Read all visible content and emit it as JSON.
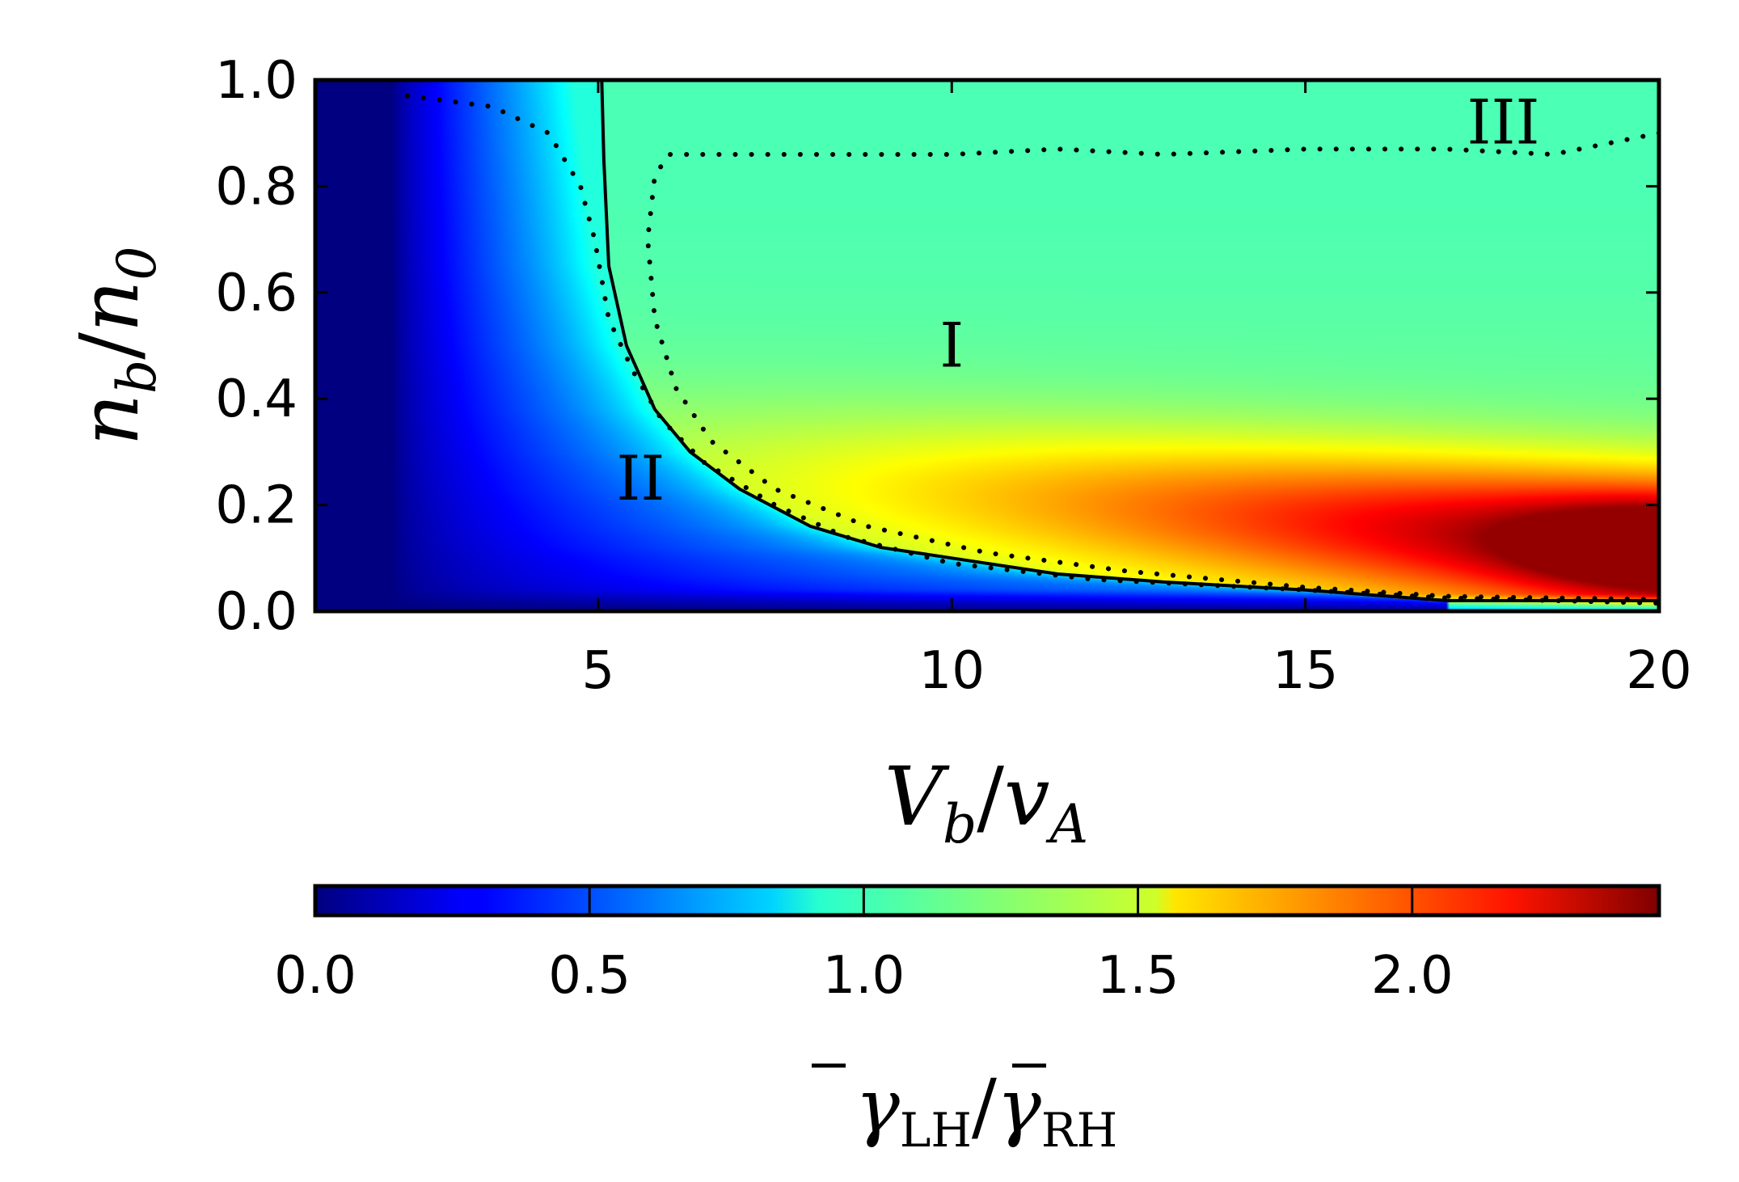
{
  "chart_data": {
    "type": "heatmap",
    "title": "",
    "xlabel_parts": {
      "main": "V",
      "main_sub": "b",
      "sep": "/",
      "den": "v",
      "den_sub": "A"
    },
    "ylabel_parts": {
      "main": "n",
      "main_sub": "b",
      "sep": "/",
      "den": "n",
      "den_sub": "0"
    },
    "colorbar_label_parts": {
      "num": "γ",
      "num_sub": "LH",
      "sep": "/",
      "den": "γ",
      "den_sub": "RH"
    },
    "xlim": [
      1,
      20
    ],
    "ylim": [
      0.0,
      1.0
    ],
    "clim": [
      0.0,
      2.45
    ],
    "colormap": "jet",
    "x_ticks": [
      5,
      10,
      15,
      20
    ],
    "x_tick_labels": [
      "5",
      "10",
      "15",
      "20"
    ],
    "y_ticks": [
      0.0,
      0.2,
      0.4,
      0.6,
      0.8,
      1.0
    ],
    "y_tick_labels": [
      "0.0",
      "0.2",
      "0.4",
      "0.6",
      "0.8",
      "1.0"
    ],
    "colorbar_ticks": [
      0.0,
      0.5,
      1.0,
      1.5,
      2.0
    ],
    "colorbar_tick_labels": [
      "0.0",
      "0.5",
      "1.0",
      "1.5",
      "2.0"
    ],
    "region_labels": [
      {
        "text": "I",
        "x": 10.0,
        "y": 0.5
      },
      {
        "text": "II",
        "x": 5.6,
        "y": 0.25
      },
      {
        "text": "III",
        "x": 17.8,
        "y": 0.92
      }
    ],
    "contours": [
      {
        "name": "solid",
        "style": "solid",
        "points": [
          [
            5.05,
            1.0
          ],
          [
            5.08,
            0.85
          ],
          [
            5.15,
            0.65
          ],
          [
            5.4,
            0.5
          ],
          [
            5.8,
            0.38
          ],
          [
            6.3,
            0.3
          ],
          [
            7.0,
            0.23
          ],
          [
            8.0,
            0.16
          ],
          [
            9.0,
            0.12
          ],
          [
            10.0,
            0.1
          ],
          [
            11.5,
            0.07
          ],
          [
            13.0,
            0.055
          ],
          [
            15.0,
            0.04
          ],
          [
            17.0,
            0.02
          ],
          [
            20.0,
            0.02
          ]
        ]
      },
      {
        "name": "dotted-outer",
        "style": "dotted",
        "points": [
          [
            2.3,
            0.97
          ],
          [
            3.5,
            0.95
          ],
          [
            4.3,
            0.9
          ],
          [
            4.75,
            0.8
          ],
          [
            4.95,
            0.7
          ],
          [
            5.15,
            0.55
          ],
          [
            5.5,
            0.45
          ],
          [
            5.9,
            0.36
          ],
          [
            6.5,
            0.28
          ],
          [
            7.5,
            0.2
          ],
          [
            8.5,
            0.14
          ],
          [
            10.0,
            0.09
          ],
          [
            12.0,
            0.06
          ],
          [
            15.0,
            0.04
          ],
          [
            17.0,
            0.025
          ],
          [
            20.0,
            0.015
          ]
        ]
      },
      {
        "name": "dotted-inner",
        "style": "dotted",
        "points": [
          [
            20.0,
            0.9
          ],
          [
            18.5,
            0.86
          ],
          [
            17.0,
            0.87
          ],
          [
            15.0,
            0.87
          ],
          [
            13.0,
            0.86
          ],
          [
            11.5,
            0.87
          ],
          [
            10.0,
            0.86
          ],
          [
            8.0,
            0.86
          ],
          [
            6.5,
            0.86
          ],
          [
            6.0,
            0.86
          ],
          [
            5.8,
            0.82
          ],
          [
            5.7,
            0.7
          ],
          [
            5.8,
            0.55
          ],
          [
            6.1,
            0.42
          ],
          [
            6.6,
            0.32
          ],
          [
            7.5,
            0.23
          ],
          [
            8.8,
            0.16
          ],
          [
            10.5,
            0.11
          ],
          [
            12.5,
            0.075
          ],
          [
            15.0,
            0.045
          ],
          [
            17.0,
            0.028
          ],
          [
            20.0,
            0.022
          ]
        ]
      }
    ],
    "field_description_values": {
      "left_band_xmax": 2.1,
      "hot_spot": {
        "x": 19.8,
        "y": 0.12,
        "value": 2.4
      },
      "upper_plateau_value": 1.1
    }
  }
}
